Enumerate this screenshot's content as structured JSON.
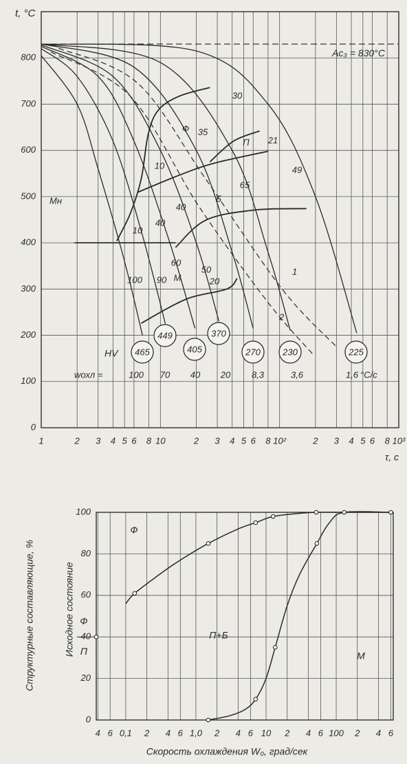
{
  "chart_data": [
    {
      "type": "line",
      "y_label": "t, °C",
      "x_label": "τ, c",
      "log_x": true,
      "grid": true,
      "xlim": [
        1,
        1000
      ],
      "ylim": [
        0,
        900
      ],
      "yticks": [
        0,
        100,
        200,
        300,
        400,
        500,
        600,
        700,
        800
      ],
      "xticks": [
        1,
        2,
        3,
        4,
        5,
        6,
        8,
        10,
        {
          "value": 20,
          "label": "2"
        },
        {
          "value": 30,
          "label": "3"
        },
        {
          "value": 40,
          "label": "4"
        },
        {
          "value": 50,
          "label": "5"
        },
        {
          "value": 60,
          "label": "6"
        },
        {
          "value": 80,
          "label": "8"
        },
        {
          "value": 100,
          "label": "10²"
        },
        {
          "value": 200,
          "label": "2"
        },
        {
          "value": 300,
          "label": "3"
        },
        {
          "value": 400,
          "label": "4"
        },
        {
          "value": 500,
          "label": "5"
        },
        {
          "value": 600,
          "label": "6"
        },
        {
          "value": 800,
          "label": "8"
        },
        {
          "value": 1000,
          "label": "10³"
        }
      ],
      "ac3": {
        "value": 830,
        "label": "Ac₃ = 830°C"
      },
      "ms": {
        "value": 400,
        "label": "Mн",
        "x": [
          1.9,
          13.4
        ]
      },
      "hv_label": "HV",
      "cooling_curves": [
        {
          "hv": 465,
          "x": [
            1,
            2,
            3,
            5,
            7.07
          ],
          "y": [
            805,
            700,
            560,
            360,
            200
          ]
        },
        {
          "hv": 449,
          "x": [
            1,
            2,
            4,
            7,
            11
          ],
          "y": [
            820,
            760,
            620,
            420,
            225
          ]
        },
        {
          "hv": 405,
          "x": [
            1,
            3,
            6,
            12,
            19.5
          ],
          "y": [
            825,
            760,
            620,
            400,
            215
          ]
        },
        {
          "hv": 370,
          "x": [
            1,
            4,
            10,
            20,
            31
          ],
          "y": [
            828,
            760,
            600,
            400,
            230
          ]
        },
        {
          "hv": 270,
          "x": [
            1,
            6,
            20,
            40,
            60
          ],
          "y": [
            830,
            780,
            600,
            380,
            215
          ]
        },
        {
          "hv": 230,
          "x": [
            1,
            10,
            40,
            80,
            123
          ],
          "y": [
            830,
            790,
            600,
            380,
            210
          ]
        },
        {
          "hv": 225,
          "x": [
            1,
            20,
            80,
            200,
            444
          ],
          "y": [
            830,
            815,
            700,
            500,
            205
          ]
        }
      ],
      "transformation_lines": [
        {
          "x": [
            26,
            14.3,
            9.6,
            7.9,
            6.9,
            5.6,
            4.3
          ],
          "y": [
            736,
            717,
            687,
            635,
            538,
            464,
            404
          ]
        },
        {
          "x": [
            26,
            41,
            68
          ],
          "y": [
            575,
            620,
            642
          ]
        },
        {
          "x": [
            6.4,
            14.3,
            28,
            80
          ],
          "y": [
            509,
            546,
            572,
            598
          ]
        },
        {
          "x": [
            13.4,
            24,
            62,
            168
          ],
          "y": [
            390,
            449,
            471,
            474
          ]
        },
        {
          "x": [
            6.9,
            16.4,
            36,
            44
          ],
          "y": [
            226,
            278,
            300,
            323
          ]
        }
      ],
      "dashed_curves": [
        {
          "name": "1",
          "x": [
            1.4,
            6.4,
            24,
            105,
            303
          ],
          "y": [
            821,
            746,
            538,
            300,
            174
          ]
        },
        {
          "name": "2",
          "x": [
            1.2,
            5.6,
            21,
            80,
            190
          ],
          "y": [
            813,
            717,
            479,
            271,
            159
          ]
        }
      ],
      "annotations": [
        "30",
        "Ф",
        "35",
        "П",
        "21",
        "49",
        "10",
        "65",
        "Б",
        "40",
        "10",
        "40",
        "60",
        "50",
        "100",
        "90",
        "M",
        "20"
      ],
      "rate_title": "wохл =",
      "rate_labels": [
        "100",
        "70",
        "40",
        "20",
        "8,3",
        "3,6",
        "1,6"
      ],
      "rate_unit": "°C/c"
    },
    {
      "type": "line",
      "y_label": "Структурные составляющие, %",
      "x_label": "Скорость охлаждения W₀, град/сек",
      "log_x": true,
      "grid": true,
      "xlim": [
        0.038,
        650
      ],
      "ylim": [
        0,
        100
      ],
      "yticks": [
        0,
        20,
        40,
        60,
        80,
        100
      ],
      "xticks": [
        {
          "value": 0.04,
          "label": "4"
        },
        {
          "value": 0.06,
          "label": "6"
        },
        {
          "value": 0.1,
          "label": "0,1"
        },
        {
          "value": 0.2,
          "label": "2"
        },
        {
          "value": 0.4,
          "label": "4"
        },
        {
          "value": 0.6,
          "label": "6"
        },
        {
          "value": 1,
          "label": "1,0"
        },
        {
          "value": 2,
          "label": "2"
        },
        {
          "value": 4,
          "label": "4"
        },
        {
          "value": 6,
          "label": "6"
        },
        10,
        {
          "value": 20,
          "label": "2"
        },
        {
          "value": 40,
          "label": "4"
        },
        {
          "value": 60,
          "label": "6"
        },
        100,
        {
          "value": 200,
          "label": "2"
        },
        {
          "value": 400,
          "label": "4"
        },
        {
          "value": 600,
          "label": "6"
        }
      ],
      "series": [
        {
          "x": [
            0.1,
            0.134,
            0.3,
            0.6,
            1.5,
            4,
            7.1,
            12.6,
            30,
            52,
            130,
            600
          ],
          "y": [
            56,
            61,
            70,
            77,
            85,
            92,
            95,
            98,
            99.5,
            100,
            100,
            100
          ],
          "points_x": [
            0.134,
            1.5,
            7.1,
            12.6,
            52
          ],
          "points_y": [
            61,
            85,
            95,
            98,
            100
          ]
        },
        {
          "x": [
            1.5,
            3,
            5,
            7.1,
            10,
            13.5,
            20,
            30,
            53,
            80,
            130,
            600
          ],
          "y": [
            0,
            2,
            5,
            10,
            20,
            35,
            55,
            70,
            85,
            95,
            100,
            100
          ],
          "points_x": [
            1.5,
            7.1,
            13.5,
            53,
            130,
            600
          ],
          "points_y": [
            0,
            10,
            35,
            85,
            100,
            100
          ]
        }
      ],
      "region_labels": [
        "Ф",
        "П+Б",
        "М"
      ],
      "initial_state": {
        "label": "Исходное состояние",
        "value": 40,
        "phases": [
          "Ф",
          "П"
        ]
      }
    }
  ]
}
